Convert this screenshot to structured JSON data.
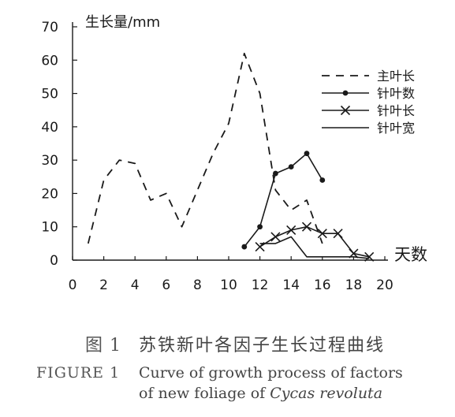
{
  "chart_data": {
    "type": "line",
    "ylabel": "生长量/mm",
    "xlabel": "天数",
    "xlim": [
      0,
      20
    ],
    "ylim": [
      0,
      70
    ],
    "x_ticks": [
      0,
      2,
      4,
      6,
      8,
      10,
      12,
      14,
      16,
      18,
      20
    ],
    "y_ticks": [
      0,
      10,
      20,
      30,
      40,
      50,
      60,
      70
    ],
    "grid": false,
    "legend_position": "top-right",
    "series": [
      {
        "name": "主叶长",
        "style": "dashed",
        "marker": "none",
        "points": [
          [
            1,
            5
          ],
          [
            2,
            24
          ],
          [
            3,
            30
          ],
          [
            4,
            29
          ],
          [
            5,
            18
          ],
          [
            6,
            20
          ],
          [
            7,
            10
          ],
          [
            8,
            21
          ],
          [
            9,
            32
          ],
          [
            10,
            41
          ],
          [
            11,
            62
          ],
          [
            12,
            50
          ],
          [
            13,
            21
          ],
          [
            14,
            15
          ],
          [
            15,
            18
          ],
          [
            16,
            5
          ]
        ]
      },
      {
        "name": "针叶数",
        "style": "solid",
        "marker": "dot",
        "points": [
          [
            11,
            4
          ],
          [
            12,
            10
          ],
          [
            13,
            26
          ],
          [
            14,
            28
          ],
          [
            15,
            32
          ],
          [
            16,
            24
          ]
        ]
      },
      {
        "name": "针叶长",
        "style": "solid",
        "marker": "x",
        "points": [
          [
            12,
            4
          ],
          [
            13,
            7
          ],
          [
            14,
            9
          ],
          [
            15,
            10
          ],
          [
            16,
            8
          ],
          [
            17,
            8
          ],
          [
            18,
            2
          ],
          [
            19,
            1
          ]
        ]
      },
      {
        "name": "针叶宽",
        "style": "solid",
        "marker": "none",
        "points": [
          [
            12,
            5
          ],
          [
            13,
            5
          ],
          [
            14,
            7
          ],
          [
            15,
            1
          ],
          [
            16,
            1
          ],
          [
            17,
            1
          ],
          [
            18,
            1
          ],
          [
            19,
            0.5
          ]
        ]
      }
    ]
  },
  "caption": {
    "cn_label": "图 1",
    "cn_text": "苏铁新叶各因子生长过程曲线",
    "en_label": "FIGURE 1",
    "en_line1": "Curve of growth process of factors",
    "en_line2_prefix": "of new foliage of ",
    "en_line2_species": "Cycas revoluta"
  }
}
